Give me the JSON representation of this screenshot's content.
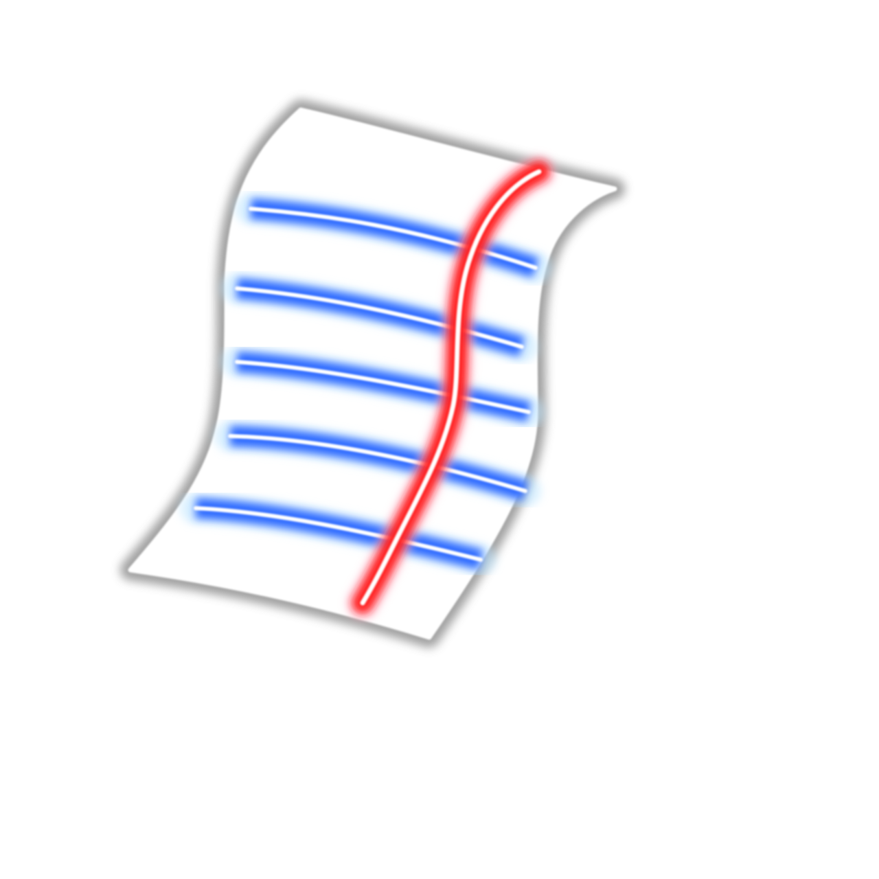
{
  "icon": {
    "name": "lined-paper-icon",
    "colors": {
      "background": "#ffffff",
      "outline_glow": "#9a9a9a",
      "outline_core": "#ffffff",
      "rule_line_glow": "#2f6bff",
      "rule_line_core": "#ffffff",
      "rule_line_halo": "#bfe6ff",
      "margin_line_glow": "#ff1e1e",
      "margin_line_core": "#ffffff",
      "margin_line_halo": "#ffb3c8"
    },
    "rule_line_count": 5,
    "margin_line_count": 1
  }
}
